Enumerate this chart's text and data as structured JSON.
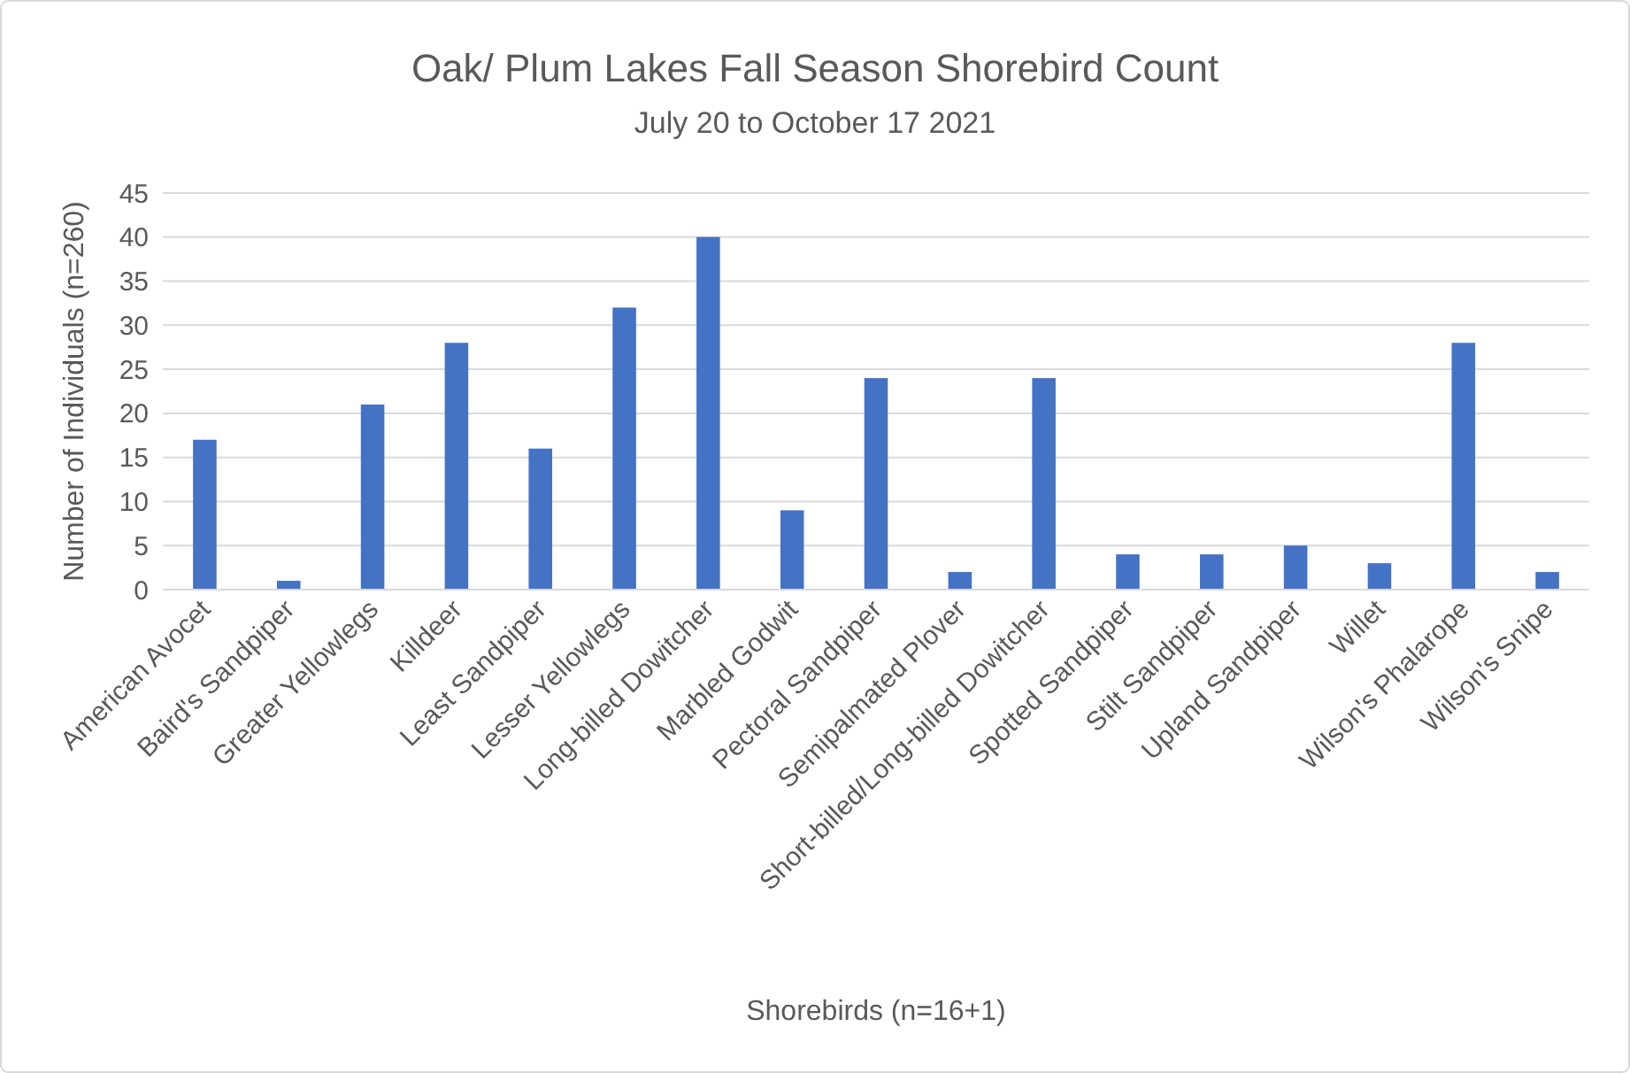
{
  "chart_data": {
    "type": "bar",
    "title": "Oak/ Plum Lakes Fall Season Shorebird Count",
    "subtitle": "July 20 to October 17 2021",
    "xlabel": "Shorebirds (n=16+1)",
    "ylabel": "Number of Individuals (n=260)",
    "categories": [
      "American Avocet",
      "Baird's Sandpiper",
      "Greater Yellowlegs",
      "Killdeer",
      "Least Sandpiper",
      "Lesser Yellowlegs",
      "Long-billed Dowitcher",
      "Marbled Godwit",
      "Pectoral Sandpiper",
      "Semipalmated Plover",
      "Short-billed/Long-billed Dowitcher",
      "Spotted Sandpiper",
      "Stilt Sandpiper",
      "Upland Sandpiper",
      "Willet",
      "Wilson's Phalarope",
      "Wilson's Snipe"
    ],
    "values": [
      17,
      1,
      21,
      28,
      16,
      32,
      40,
      9,
      24,
      2,
      24,
      4,
      4,
      5,
      3,
      28,
      2
    ],
    "color": "#4472c4",
    "ylim": [
      0,
      45
    ],
    "yticks": [
      0,
      5,
      10,
      15,
      20,
      25,
      30,
      35,
      40,
      45
    ],
    "grid": "y"
  }
}
